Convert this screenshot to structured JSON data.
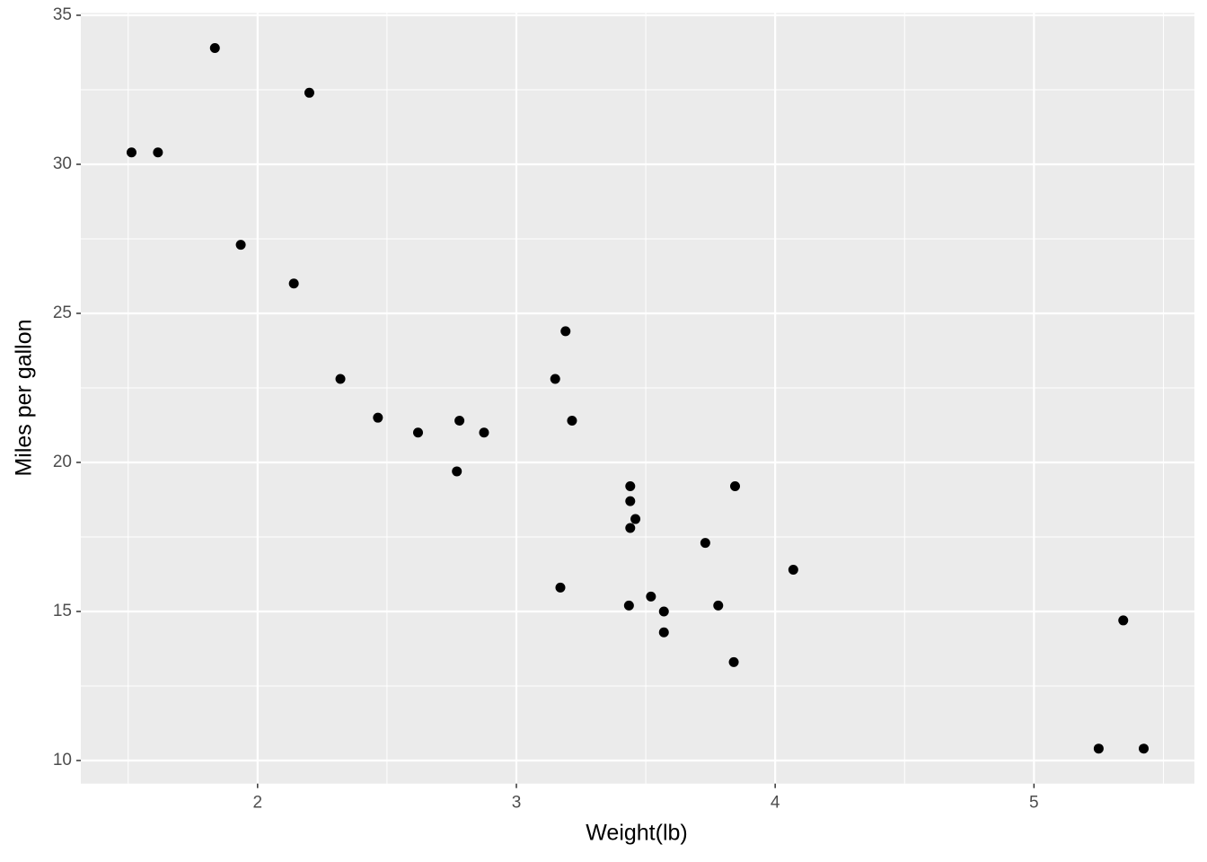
{
  "chart_data": {
    "type": "scatter",
    "x_label": "Weight(lb)",
    "y_label": "Miles per gallon",
    "x": [
      2.62,
      2.875,
      2.32,
      3.215,
      3.44,
      3.46,
      3.57,
      3.19,
      3.15,
      3.44,
      3.44,
      4.07,
      3.73,
      3.78,
      5.25,
      5.424,
      5.345,
      2.2,
      1.615,
      1.835,
      2.465,
      3.52,
      3.435,
      3.84,
      3.845,
      1.935,
      2.14,
      1.513,
      3.17,
      2.77,
      3.57,
      2.78
    ],
    "values": [
      21.0,
      21.0,
      22.8,
      21.4,
      18.7,
      18.1,
      14.3,
      24.4,
      22.8,
      19.2,
      17.8,
      16.4,
      17.3,
      15.2,
      10.4,
      10.4,
      14.7,
      32.4,
      30.4,
      33.9,
      21.5,
      15.5,
      15.2,
      13.3,
      19.2,
      27.3,
      26.0,
      30.4,
      15.8,
      19.7,
      15.0,
      21.4
    ],
    "color": "#000000",
    "xlim": [
      1.317,
      5.62
    ],
    "ylim": [
      9.225,
      35.075
    ],
    "xticks": [
      2,
      3,
      4,
      5
    ],
    "yticks": [
      10,
      15,
      20,
      25,
      30,
      35
    ],
    "minor_xticks": [
      1.5,
      2.5,
      3.5,
      4.5,
      5.5
    ],
    "minor_yticks": [
      12.5,
      17.5,
      22.5,
      27.5,
      32.5
    ],
    "grid": true
  }
}
